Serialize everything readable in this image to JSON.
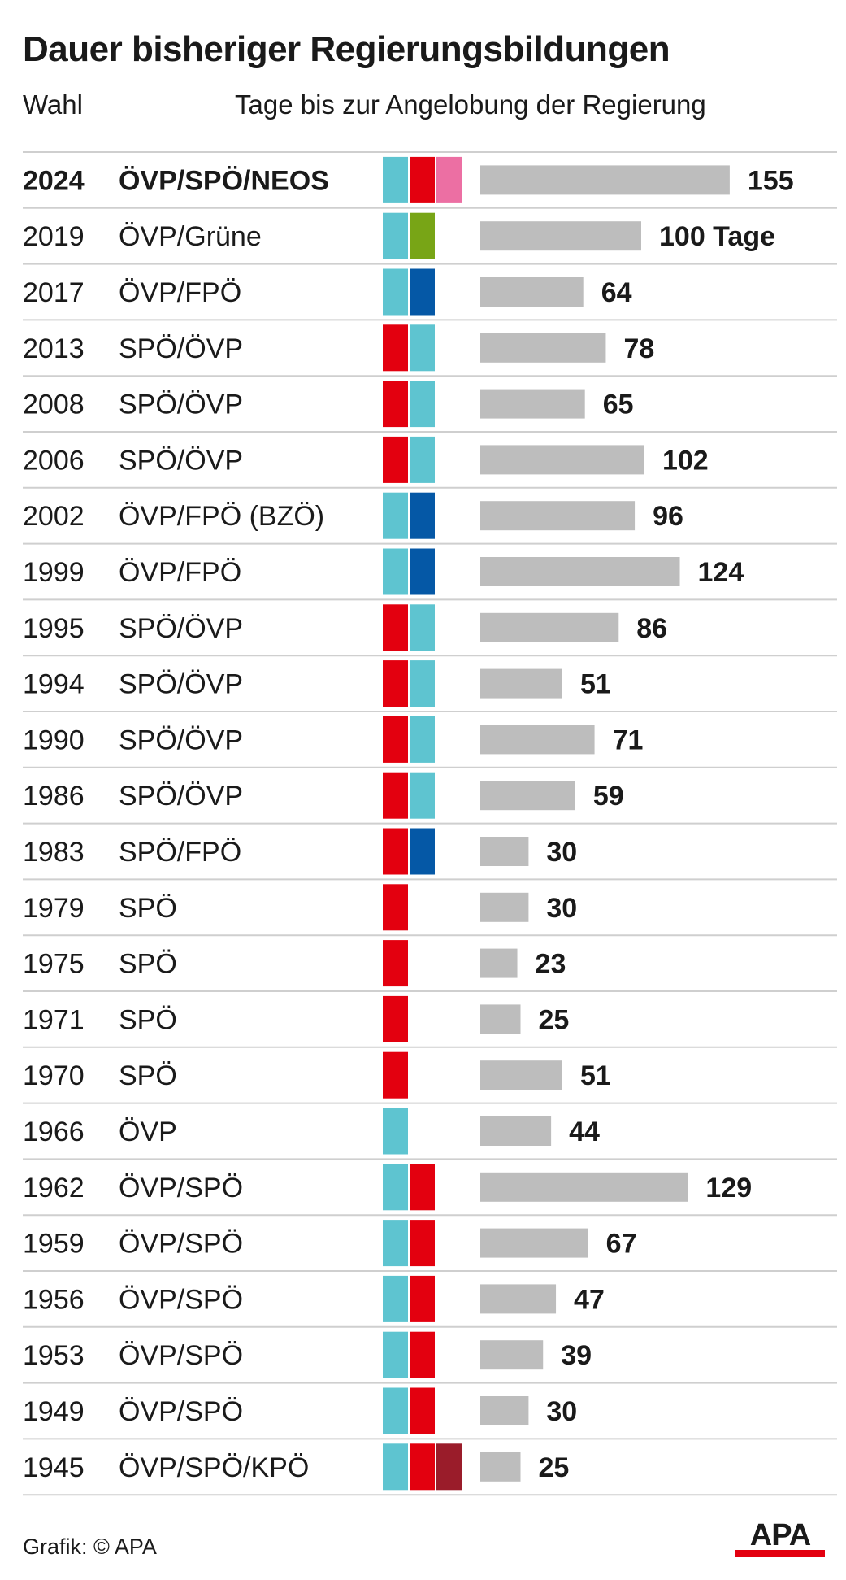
{
  "title": "Dauer bisheriger Regierungsbildungen",
  "header": {
    "col_wahl": "Wahl",
    "col_tage": "Tage bis zur Angelobung der Regierung"
  },
  "parties": {
    "ÖVP": "#5ec4d0",
    "SPÖ": "#e3000f",
    "NEOS": "#ec6fa3",
    "Grüne": "#78a516",
    "FPÖ": "#0558a6",
    "KPÖ": "#9a1c2a"
  },
  "bar_color": "#bdbdbd",
  "chart_data": {
    "type": "bar",
    "orientation": "horizontal",
    "title": "Dauer bisheriger Regierungsbildungen",
    "xlabel": "Tage bis zur Angelobung der Regierung",
    "ylabel": "Wahl",
    "unit_label": "100 Tage",
    "rows": [
      {
        "year": "2024",
        "label": "ÖVP/SPÖ/NEOS",
        "parties": [
          "ÖVP",
          "SPÖ",
          "NEOS"
        ],
        "value": 155,
        "value_label": "155",
        "highlight": true
      },
      {
        "year": "2019",
        "label": "ÖVP/Grüne",
        "parties": [
          "ÖVP",
          "Grüne"
        ],
        "value": 100,
        "value_label": "100 Tage"
      },
      {
        "year": "2017",
        "label": "ÖVP/FPÖ",
        "parties": [
          "ÖVP",
          "FPÖ"
        ],
        "value": 64,
        "value_label": "64"
      },
      {
        "year": "2013",
        "label": "SPÖ/ÖVP",
        "parties": [
          "SPÖ",
          "ÖVP"
        ],
        "value": 78,
        "value_label": "78"
      },
      {
        "year": "2008",
        "label": "SPÖ/ÖVP",
        "parties": [
          "SPÖ",
          "ÖVP"
        ],
        "value": 65,
        "value_label": "65"
      },
      {
        "year": "2006",
        "label": "SPÖ/ÖVP",
        "parties": [
          "SPÖ",
          "ÖVP"
        ],
        "value": 102,
        "value_label": "102"
      },
      {
        "year": "2002",
        "label": "ÖVP/FPÖ (BZÖ)",
        "parties": [
          "ÖVP",
          "FPÖ"
        ],
        "value": 96,
        "value_label": "96"
      },
      {
        "year": "1999",
        "label": "ÖVP/FPÖ",
        "parties": [
          "ÖVP",
          "FPÖ"
        ],
        "value": 124,
        "value_label": "124"
      },
      {
        "year": "1995",
        "label": "SPÖ/ÖVP",
        "parties": [
          "SPÖ",
          "ÖVP"
        ],
        "value": 86,
        "value_label": "86"
      },
      {
        "year": "1994",
        "label": "SPÖ/ÖVP",
        "parties": [
          "SPÖ",
          "ÖVP"
        ],
        "value": 51,
        "value_label": "51"
      },
      {
        "year": "1990",
        "label": "SPÖ/ÖVP",
        "parties": [
          "SPÖ",
          "ÖVP"
        ],
        "value": 71,
        "value_label": "71"
      },
      {
        "year": "1986",
        "label": "SPÖ/ÖVP",
        "parties": [
          "SPÖ",
          "ÖVP"
        ],
        "value": 59,
        "value_label": "59"
      },
      {
        "year": "1983",
        "label": "SPÖ/FPÖ",
        "parties": [
          "SPÖ",
          "FPÖ"
        ],
        "value": 30,
        "value_label": "30"
      },
      {
        "year": "1979",
        "label": "SPÖ",
        "parties": [
          "SPÖ"
        ],
        "value": 30,
        "value_label": "30"
      },
      {
        "year": "1975",
        "label": "SPÖ",
        "parties": [
          "SPÖ"
        ],
        "value": 23,
        "value_label": "23"
      },
      {
        "year": "1971",
        "label": "SPÖ",
        "parties": [
          "SPÖ"
        ],
        "value": 25,
        "value_label": "25"
      },
      {
        "year": "1970",
        "label": "SPÖ",
        "parties": [
          "SPÖ"
        ],
        "value": 51,
        "value_label": "51"
      },
      {
        "year": "1966",
        "label": "ÖVP",
        "parties": [
          "ÖVP"
        ],
        "value": 44,
        "value_label": "44"
      },
      {
        "year": "1962",
        "label": "ÖVP/SPÖ",
        "parties": [
          "ÖVP",
          "SPÖ"
        ],
        "value": 129,
        "value_label": "129"
      },
      {
        "year": "1959",
        "label": "ÖVP/SPÖ",
        "parties": [
          "ÖVP",
          "SPÖ"
        ],
        "value": 67,
        "value_label": "67"
      },
      {
        "year": "1956",
        "label": "ÖVP/SPÖ",
        "parties": [
          "ÖVP",
          "SPÖ"
        ],
        "value": 47,
        "value_label": "47"
      },
      {
        "year": "1953",
        "label": "ÖVP/SPÖ",
        "parties": [
          "ÖVP",
          "SPÖ"
        ],
        "value": 39,
        "value_label": "39"
      },
      {
        "year": "1949",
        "label": "ÖVP/SPÖ",
        "parties": [
          "ÖVP",
          "SPÖ"
        ],
        "value": 30,
        "value_label": "30"
      },
      {
        "year": "1945",
        "label": "ÖVP/SPÖ/KPÖ",
        "parties": [
          "ÖVP",
          "SPÖ",
          "KPÖ"
        ],
        "value": 25,
        "value_label": "25"
      }
    ]
  },
  "footer": {
    "credit": "Grafik: © APA",
    "logo_text": "APA"
  }
}
